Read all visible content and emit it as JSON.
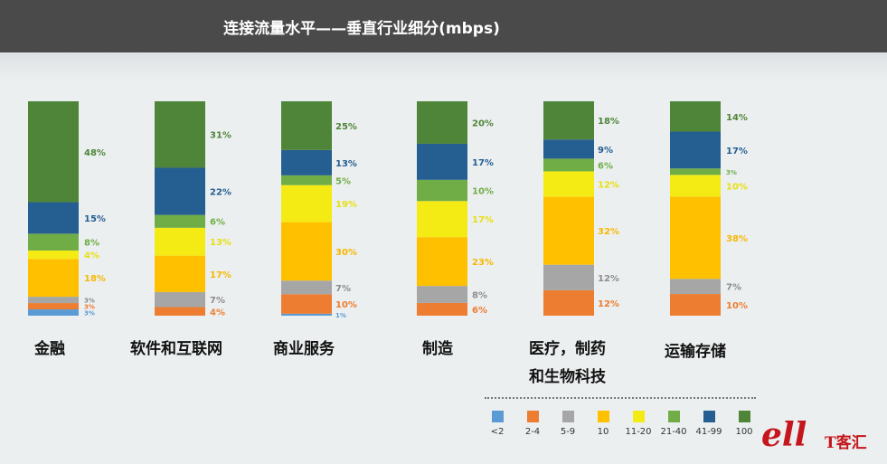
{
  "title": "连接流量水平——垂直行业细分(mbps)",
  "chart_data": {
    "type": "bar",
    "stacked": true,
    "orientation": "vertical",
    "unit": "%",
    "categories": [
      {
        "lines": [
          "金融"
        ]
      },
      {
        "lines": [
          "软件和互联网"
        ]
      },
      {
        "lines": [
          "商业服务"
        ]
      },
      {
        "lines": [
          "制造"
        ]
      },
      {
        "lines": [
          "医疗，制药",
          "和生物科技"
        ]
      },
      {
        "lines": [
          "运输存储"
        ]
      }
    ],
    "series": [
      {
        "name": "<2",
        "color": "#5b9bd5",
        "label_color": "#5b9bd5",
        "values": [
          3,
          0,
          1,
          0,
          0,
          0
        ]
      },
      {
        "name": "2-4",
        "color": "#ed7d31",
        "label_color": "#ed7d31",
        "values": [
          3,
          4,
          10,
          6,
          12,
          10
        ]
      },
      {
        "name": "5-9",
        "color": "#a6a6a6",
        "label_color": "#8c8c8c",
        "values": [
          3,
          7,
          7,
          8,
          12,
          7
        ]
      },
      {
        "name": "10",
        "color": "#ffc000",
        "label_color": "#f5b800",
        "values": [
          18,
          17,
          30,
          23,
          32,
          38
        ]
      },
      {
        "name": "11-20",
        "color": "#f5eb14",
        "label_color": "#e8df10",
        "values": [
          4,
          13,
          19,
          17,
          12,
          10
        ]
      },
      {
        "name": "21-40",
        "color": "#70ad47",
        "label_color": "#70ad47",
        "values": [
          8,
          6,
          5,
          10,
          6,
          3
        ]
      },
      {
        "name": "41-99",
        "color": "#255e91",
        "label_color": "#255e91",
        "values": [
          15,
          22,
          13,
          17,
          9,
          17
        ]
      },
      {
        "name": "100",
        "color": "#4e8538",
        "label_color": "#4e8538",
        "values": [
          48,
          31,
          25,
          20,
          18,
          14
        ]
      }
    ],
    "value_labels": [
      [
        "3%",
        "",
        "1%",
        "",
        "",
        ""
      ],
      [
        "3%",
        "4%",
        "10%",
        "6%",
        "12%",
        "10%"
      ],
      [
        "3%",
        "7%",
        "7%",
        "8%",
        "12%",
        "7%"
      ],
      [
        "18%",
        "17%",
        "30%",
        "23%",
        "32%",
        "38%"
      ],
      [
        "4%",
        "13%",
        "19%",
        "17%",
        "12%",
        "10%"
      ],
      [
        "8%",
        "6%",
        "5%",
        "10%",
        "6%",
        "3%"
      ],
      [
        "15%",
        "22%",
        "13%",
        "17%",
        "9%",
        "17%"
      ],
      [
        "48%",
        "31%",
        "25%",
        "20%",
        "18%",
        "14%"
      ]
    ],
    "legend": {
      "placement": "bottom-right"
    }
  },
  "brand": {
    "mark": "ell",
    "text": "T客汇",
    "color": "#c4161c"
  }
}
